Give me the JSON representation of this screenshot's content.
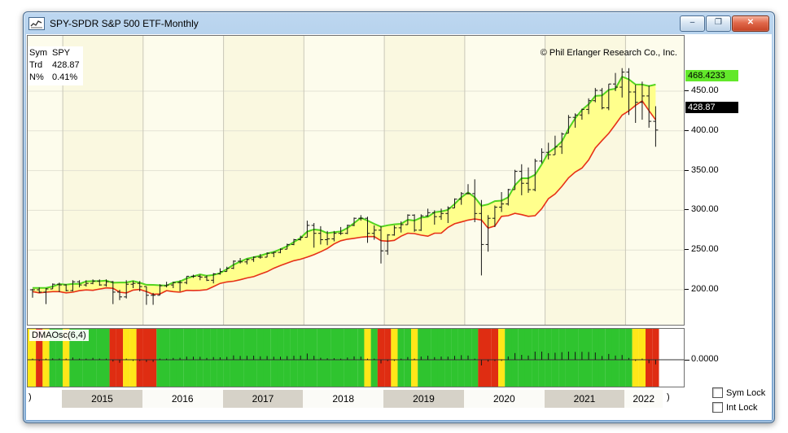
{
  "window": {
    "title": "SPY-SPDR S&P 500 ETF-Monthly",
    "buttons": {
      "minimize_glyph": "–",
      "restore_glyph": "❐",
      "close_glyph": "✕"
    }
  },
  "chart_header": {
    "copyright": "© Phil Erlanger Research Co., Inc.",
    "info": {
      "rows": [
        {
          "label": "Sym",
          "value": "SPY"
        },
        {
          "label": "Trd",
          "value": "428.87"
        },
        {
          "label": "N%",
          "value": "0.41%"
        }
      ]
    }
  },
  "price_axis": {
    "band_top_label": "468.4233",
    "last_price_label": "428.87",
    "ticks": [
      {
        "price": 450,
        "label": "450.00"
      },
      {
        "price": 400,
        "label": "400.00"
      },
      {
        "price": 350,
        "label": "350.00"
      },
      {
        "price": 300,
        "label": "300.00"
      },
      {
        "price": 250,
        "label": "250.00"
      },
      {
        "price": 200,
        "label": "200.00"
      }
    ]
  },
  "oscillator_panel": {
    "indicator_label": "DMAOsc(6,4)",
    "zero_label": "0.0000"
  },
  "x_axis": {
    "years": [
      "2015",
      "2016",
      "2017",
      "2018",
      "2019",
      "2020",
      "2021",
      "2022"
    ],
    "left_cap": ")",
    "right_cap": ")"
  },
  "locks": {
    "sym_lock_label": "Sym Lock",
    "int_lock_label": "Int Lock"
  },
  "chart_data": {
    "type": "ohlc-monthly-bars-with-dma-envelope-and-oscillator",
    "symbol": "SPY",
    "interval": "Monthly",
    "start_month": "2014-08",
    "end_month": "2022-05",
    "price_ticks": [
      200,
      250,
      300,
      350,
      400,
      450
    ],
    "band_top_price": 468.4233,
    "last_trade": 428.87,
    "net_pct": 0.41,
    "high": [
      201,
      203,
      202,
      208,
      209,
      207,
      212,
      212,
      212,
      213,
      213,
      213,
      211,
      200,
      212,
      211,
      211,
      204,
      196,
      207,
      210,
      210,
      212,
      217,
      219,
      219,
      218,
      221,
      227,
      229,
      237,
      240,
      239,
      242,
      245,
      247,
      248,
      252,
      258,
      264,
      268,
      287,
      284,
      280,
      274,
      274,
      279,
      282,
      291,
      294,
      292,
      281,
      280,
      270,
      281,
      286,
      295,
      295,
      295,
      302,
      300,
      302,
      305,
      315,
      323,
      333,
      339,
      313,
      294,
      306,
      323,
      327,
      351,
      358,
      354,
      365,
      378,
      385,
      394,
      398,
      420,
      422,
      428,
      441,
      454,
      454,
      459,
      473,
      479,
      479,
      458,
      462,
      457,
      431
    ],
    "low": [
      190,
      196,
      182,
      201,
      197,
      198,
      198,
      203,
      204,
      207,
      205,
      204,
      182,
      187,
      189,
      202,
      198,
      181,
      181,
      193,
      203,
      202,
      198,
      207,
      215,
      212,
      211,
      208,
      219,
      223,
      226,
      233,
      232,
      235,
      239,
      241,
      241,
      246,
      251,
      256,
      262,
      266,
      253,
      257,
      256,
      261,
      269,
      270,
      280,
      287,
      259,
      263,
      233,
      244,
      268,
      272,
      282,
      273,
      274,
      292,
      282,
      288,
      284,
      303,
      307,
      320,
      285,
      218,
      248,
      279,
      298,
      306,
      326,
      319,
      322,
      324,
      359,
      364,
      370,
      371,
      397,
      404,
      414,
      421,
      436,
      427,
      426,
      450,
      442,
      420,
      410,
      414,
      404,
      380
    ],
    "close": [
      200,
      197,
      201,
      207,
      206,
      199,
      210,
      206,
      208,
      211,
      206,
      210,
      197,
      191,
      207,
      208,
      204,
      193,
      193,
      205,
      206,
      209,
      209,
      217,
      217,
      216,
      212,
      220,
      223,
      227,
      236,
      235,
      238,
      241,
      241,
      246,
      247,
      251,
      257,
      263,
      266,
      281,
      271,
      263,
      264,
      271,
      271,
      281,
      290,
      290,
      271,
      275,
      249,
      269,
      278,
      282,
      294,
      275,
      293,
      297,
      292,
      296,
      303,
      314,
      321,
      321,
      296,
      257,
      290,
      304,
      308,
      326,
      349,
      334,
      326,
      362,
      373,
      370,
      380,
      396,
      417,
      420,
      427,
      438,
      451,
      429,
      459,
      455,
      474,
      449,
      436,
      444,
      412,
      401
    ],
    "band": {
      "name": "Displaced MA envelope",
      "ma_period": 6,
      "displacement": 4,
      "width_pct": 1.2
    },
    "oscillator": {
      "name": "DMAOsc(6,4)",
      "zero": 0,
      "green_min": 0.5,
      "red_max": -0.8
    },
    "style": {
      "band_fill": "#ffff8c",
      "band_upper": "#52d41f",
      "band_lower": "#e63118",
      "bar_color": "#151515",
      "osc_green": "#2fc42f",
      "osc_red": "#df2d12",
      "osc_yellow": "#ffe619",
      "chart_bg_a": "#fdfcec",
      "chart_bg_b": "#faf8e0",
      "grid_h": "#e3e2d3",
      "grid_v": "#c9c7b8"
    }
  }
}
